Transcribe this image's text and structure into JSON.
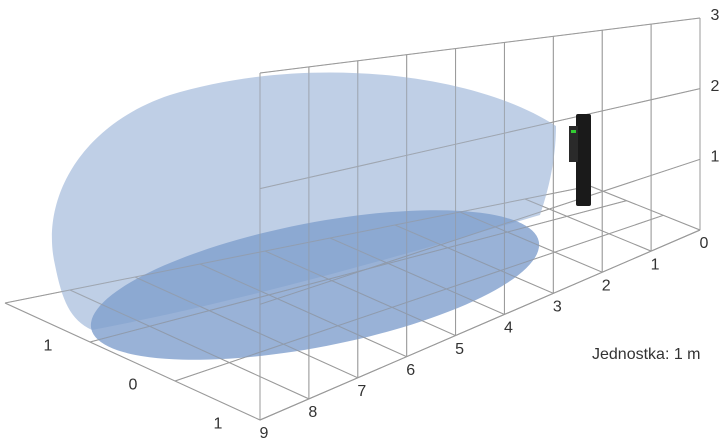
{
  "distance_labels": [
    "0",
    "1",
    "2",
    "3",
    "4",
    "5",
    "6",
    "7",
    "8",
    "9"
  ],
  "lateral_labels": [
    "1",
    "0",
    "1"
  ],
  "height_labels": [
    "1",
    "2",
    "3"
  ],
  "unit_label": "Jednostka: 1 m"
}
